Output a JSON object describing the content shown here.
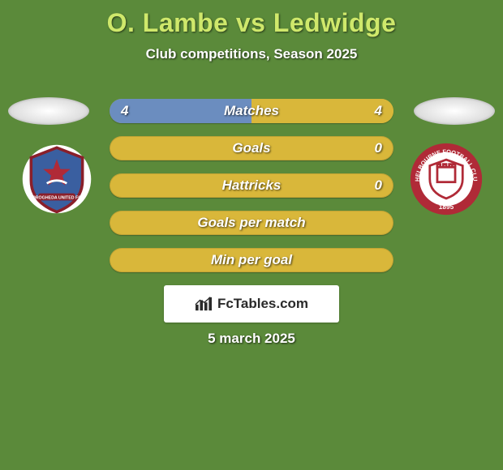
{
  "background_color": "#5b8a3a",
  "title": {
    "text": "O. Lambe vs Ledwidge",
    "color": "#cfe86b",
    "fontsize": 32
  },
  "subtitle": "Club competitions, Season 2025",
  "player_left": {
    "crest_name": "drogheda-united",
    "crest_primary": "#5b8a3a",
    "crest_secondary": "#b02a37",
    "crest_shape": "shield"
  },
  "player_right": {
    "crest_name": "shelbourne",
    "crest_primary": "#b02a37",
    "crest_secondary": "#ffffff",
    "crest_shape": "round"
  },
  "bar_style": {
    "left_color": "#6b8dbf",
    "right_color": "#d9b73a",
    "neutral_color": "#d9b73a",
    "height": 30,
    "radius": 15,
    "gap": 16,
    "label_fontsize": 17
  },
  "bars": [
    {
      "label": "Matches",
      "left": "4",
      "right": "4",
      "left_pct": 50,
      "right_pct": 50
    },
    {
      "label": "Goals",
      "left": "",
      "right": "0",
      "left_pct": 0,
      "right_pct": 0
    },
    {
      "label": "Hattricks",
      "left": "",
      "right": "0",
      "left_pct": 0,
      "right_pct": 0
    },
    {
      "label": "Goals per match",
      "left": "",
      "right": "",
      "left_pct": 0,
      "right_pct": 0
    },
    {
      "label": "Min per goal",
      "left": "",
      "right": "",
      "left_pct": 0,
      "right_pct": 0
    }
  ],
  "watermark": "FcTables.com",
  "date": "5 march 2025"
}
